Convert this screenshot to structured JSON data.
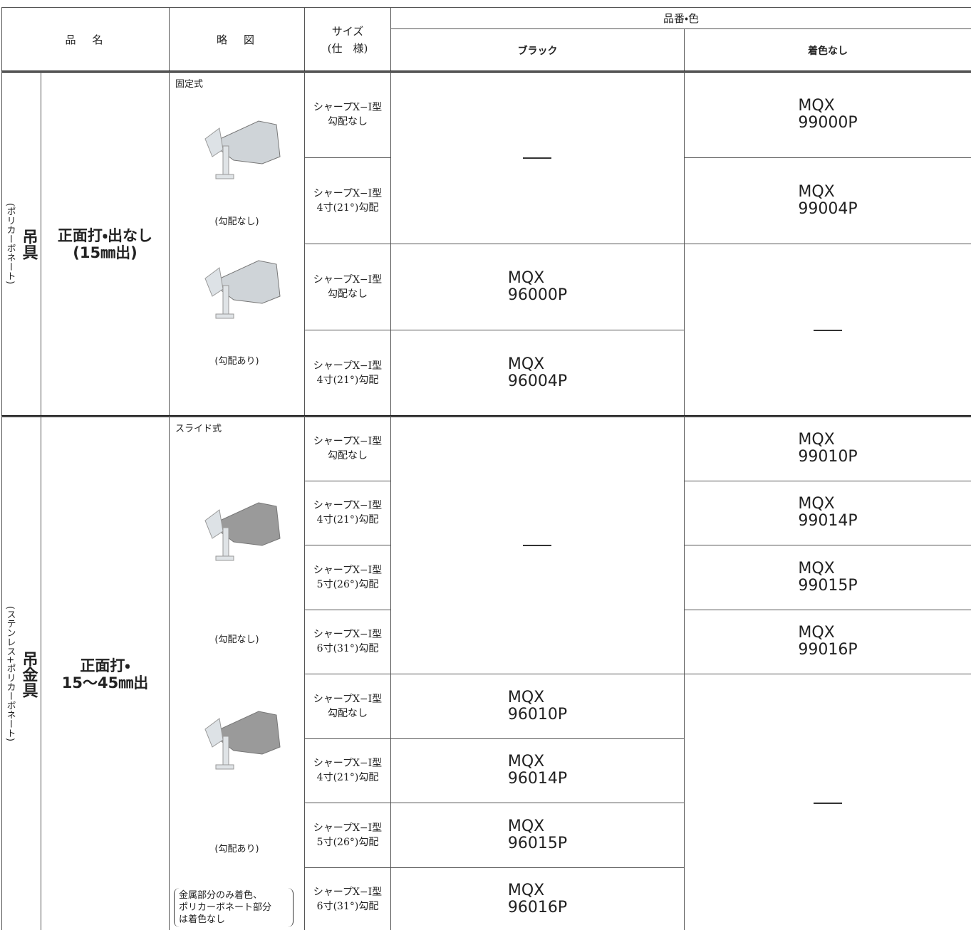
{
  "header": {
    "name": "品　名",
    "diagram": "略　図",
    "size": [
      "サイズ",
      "(仕　様)"
    ],
    "product": "品番・色",
    "black": "ブラック",
    "uncolored": "着色なし"
  },
  "sections": [
    {
      "category": "吊具",
      "category_note": "(ポリカーボネート)",
      "name": [
        "正面打・出なし",
        "(15㎜出)"
      ],
      "diagram_type": "固定式",
      "captions": [
        "(勾配なし)",
        "(勾配あり)"
      ],
      "rows": [
        {
          "size": [
            "シャープX−I型",
            "勾配なし"
          ],
          "black": null,
          "uncolored": [
            "MQX",
            "99000P"
          ]
        },
        {
          "size": [
            "シャープX−I型",
            "4寸(21°)勾配"
          ],
          "black": null,
          "uncolored": [
            "MQX",
            "99004P"
          ]
        },
        {
          "size": [
            "シャープX−I型",
            "勾配なし"
          ],
          "black": [
            "MQX",
            "96000P"
          ],
          "uncolored": null
        },
        {
          "size": [
            "シャープX−I型",
            "4寸(21°)勾配"
          ],
          "black": [
            "MQX",
            "96004P"
          ],
          "uncolored": null
        }
      ]
    },
    {
      "category": "吊金具",
      "category_note": "(ステンレス+ポリカーボネート)",
      "name": [
        "正面打・",
        "15〜45㎜出"
      ],
      "diagram_type": "スライド式",
      "captions": [
        "(勾配なし)",
        "(勾配あり)"
      ],
      "note": [
        "金属部分のみ着色、",
        "ポリカーボネート部分",
        "は着色なし"
      ],
      "rows": [
        {
          "size": [
            "シャープX−I型",
            "勾配なし"
          ],
          "black": null,
          "uncolored": [
            "MQX",
            "99010P"
          ]
        },
        {
          "size": [
            "シャープX−I型",
            "4寸(21°)勾配"
          ],
          "black": null,
          "uncolored": [
            "MQX",
            "99014P"
          ]
        },
        {
          "size": [
            "シャープX−I型",
            "5寸(26°)勾配"
          ],
          "black": null,
          "uncolored": [
            "MQX",
            "99015P"
          ]
        },
        {
          "size": [
            "シャープX−I型",
            "6寸(31°)勾配"
          ],
          "black": null,
          "uncolored": [
            "MQX",
            "99016P"
          ]
        },
        {
          "size": [
            "シャープX−I型",
            "勾配なし"
          ],
          "black": [
            "MQX",
            "96010P"
          ],
          "uncolored": null
        },
        {
          "size": [
            "シャープX−I型",
            "4寸(21°)勾配"
          ],
          "black": [
            "MQX",
            "96014P"
          ],
          "uncolored": null
        },
        {
          "size": [
            "シャープX−I型",
            "5寸(26°)勾配"
          ],
          "black": [
            "MQX",
            "96015P"
          ],
          "uncolored": null
        },
        {
          "size": [
            "シャープX−I型",
            "6寸(31°)勾配"
          ],
          "black": [
            "MQX",
            "96016P"
          ],
          "uncolored": null
        }
      ]
    }
  ]
}
